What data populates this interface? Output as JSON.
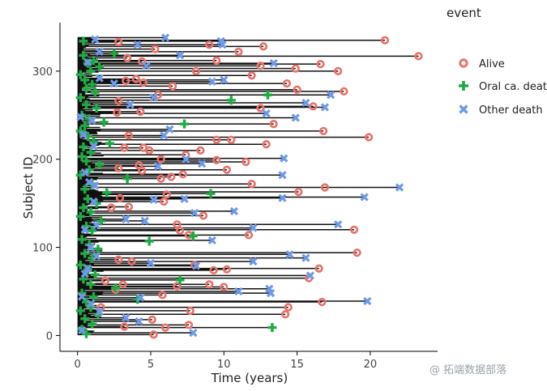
{
  "chart_data": {
    "type": "scatter",
    "title": "",
    "xlabel": "Time (years)",
    "ylabel": "Subject ID",
    "xlim": [
      -1.2,
      24.6
    ],
    "ylim": [
      -18,
      355
    ],
    "xticks": [
      0,
      5,
      10,
      15,
      20
    ],
    "yticks": [
      0,
      100,
      200,
      300
    ],
    "n_subjects": 338,
    "legend_title": "event",
    "legend_position": "right",
    "series": [
      {
        "name": "Alive",
        "color": "#e8736c",
        "marker": "open-circle",
        "points": [
          [
            21.0,
            335
          ],
          [
            2.8,
            333
          ],
          [
            9.0,
            330
          ],
          [
            12.7,
            328
          ],
          [
            5.3,
            325
          ],
          [
            11.0,
            322
          ],
          [
            23.3,
            317
          ],
          [
            3.4,
            315
          ],
          [
            9.5,
            312
          ],
          [
            4.4,
            311
          ],
          [
            16.6,
            308
          ],
          [
            12.5,
            306
          ],
          [
            14.9,
            303
          ],
          [
            8.1,
            300
          ],
          [
            17.8,
            300
          ],
          [
            11.9,
            295
          ],
          [
            4.0,
            291
          ],
          [
            3.3,
            289
          ],
          [
            4.5,
            287
          ],
          [
            14.3,
            286
          ],
          [
            6.5,
            283
          ],
          [
            18.2,
            277
          ],
          [
            15.0,
            279
          ],
          [
            5.5,
            273
          ],
          [
            2.8,
            266
          ],
          [
            16.1,
            260
          ],
          [
            12.5,
            258
          ],
          [
            2.7,
            253
          ],
          [
            4.3,
            254
          ],
          [
            13.4,
            240
          ],
          [
            16.8,
            232
          ],
          [
            3.5,
            227
          ],
          [
            9.5,
            222
          ],
          [
            10.5,
            222
          ],
          [
            19.9,
            225
          ],
          [
            12.9,
            217
          ],
          [
            3.2,
            213
          ],
          [
            4.5,
            213
          ],
          [
            4.9,
            210
          ],
          [
            8.4,
            210
          ],
          [
            7.4,
            205
          ],
          [
            5.7,
            200
          ],
          [
            9.5,
            199
          ],
          [
            11.5,
            197
          ],
          [
            4.2,
            193
          ],
          [
            2.8,
            190
          ],
          [
            10.2,
            188
          ],
          [
            4.4,
            187
          ],
          [
            7.2,
            183
          ],
          [
            5.7,
            178
          ],
          [
            6.4,
            180
          ],
          [
            11.9,
            172
          ],
          [
            16.9,
            168
          ],
          [
            15.1,
            163
          ],
          [
            6.1,
            160
          ],
          [
            2.9,
            156
          ],
          [
            5.9,
            152
          ],
          [
            2.3,
            145
          ],
          [
            3.5,
            146
          ],
          [
            8.6,
            136
          ],
          [
            6.8,
            126
          ],
          [
            7.0,
            119
          ],
          [
            7.6,
            114
          ],
          [
            11.7,
            114
          ],
          [
            18.9,
            120
          ],
          [
            19.1,
            94
          ],
          [
            2.8,
            86
          ],
          [
            3.7,
            84
          ],
          [
            8.0,
            80
          ],
          [
            9.3,
            74
          ],
          [
            10.2,
            75
          ],
          [
            16.5,
            76
          ],
          [
            15.8,
            65
          ],
          [
            1.9,
            62
          ],
          [
            6.8,
            56
          ],
          [
            9.0,
            58
          ],
          [
            2.6,
            52
          ],
          [
            3.1,
            58
          ],
          [
            10.0,
            55
          ],
          [
            5.8,
            46
          ],
          [
            16.7,
            38
          ],
          [
            1.6,
            32
          ],
          [
            14.4,
            32
          ],
          [
            14.2,
            24
          ],
          [
            7.7,
            28
          ],
          [
            5.1,
            18
          ],
          [
            3.2,
            10
          ],
          [
            6.0,
            9
          ],
          [
            7.6,
            12
          ],
          [
            5.2,
            1
          ]
        ]
      },
      {
        "name": "Oral ca. death",
        "color": "#1faa45",
        "marker": "plus",
        "points": [
          [
            0.4,
            334
          ],
          [
            2.5,
            320
          ],
          [
            0.4,
            318
          ],
          [
            1.1,
            312
          ],
          [
            0.7,
            309
          ],
          [
            1.5,
            305
          ],
          [
            0.9,
            300
          ],
          [
            0.2,
            296
          ],
          [
            0.5,
            290
          ],
          [
            1.0,
            285
          ],
          [
            0.6,
            280
          ],
          [
            1.2,
            276
          ],
          [
            0.2,
            270
          ],
          [
            10.5,
            267
          ],
          [
            13.0,
            273
          ],
          [
            0.6,
            262
          ],
          [
            1.3,
            258
          ],
          [
            0.3,
            250
          ],
          [
            0.8,
            246
          ],
          [
            1.8,
            242
          ],
          [
            0.5,
            238
          ],
          [
            7.3,
            240
          ],
          [
            0.2,
            232
          ],
          [
            0.7,
            226
          ],
          [
            1.1,
            220
          ],
          [
            2.2,
            218
          ],
          [
            0.4,
            214
          ],
          [
            0.9,
            208
          ],
          [
            0.3,
            203
          ],
          [
            0.6,
            198
          ],
          [
            1.5,
            194
          ],
          [
            0.8,
            188
          ],
          [
            0.2,
            182
          ],
          [
            3.4,
            178
          ],
          [
            1.0,
            172
          ],
          [
            0.5,
            166
          ],
          [
            2.0,
            162
          ],
          [
            9.1,
            161
          ],
          [
            0.7,
            155
          ],
          [
            1.3,
            150
          ],
          [
            0.4,
            145
          ],
          [
            0.9,
            140
          ],
          [
            0.2,
            135
          ],
          [
            1.6,
            130
          ],
          [
            0.6,
            124
          ],
          [
            1.0,
            119
          ],
          [
            7.9,
            113
          ],
          [
            0.3,
            109
          ],
          [
            4.9,
            107
          ],
          [
            0.8,
            103
          ],
          [
            1.4,
            98
          ],
          [
            0.5,
            93
          ],
          [
            1.0,
            88
          ],
          [
            0.2,
            80
          ],
          [
            0.7,
            75
          ],
          [
            1.2,
            69
          ],
          [
            0.4,
            64
          ],
          [
            7.0,
            63
          ],
          [
            0.9,
            58
          ],
          [
            2.6,
            54
          ],
          [
            0.3,
            48
          ],
          [
            1.1,
            44
          ],
          [
            4.1,
            41
          ],
          [
            0.6,
            38
          ],
          [
            0.9,
            32
          ],
          [
            0.2,
            28
          ],
          [
            1.4,
            24
          ],
          [
            0.5,
            19
          ],
          [
            13.3,
            9
          ],
          [
            1.0,
            13
          ],
          [
            0.3,
            7
          ],
          [
            0.6,
            2
          ]
        ]
      },
      {
        "name": "Other death",
        "color": "#6f99e8",
        "marker": "cross",
        "points": [
          [
            1.2,
            336
          ],
          [
            6.0,
            338
          ],
          [
            9.8,
            334
          ],
          [
            4.1,
            330
          ],
          [
            7.0,
            318
          ],
          [
            9.9,
            330
          ],
          [
            1.5,
            322
          ],
          [
            13.4,
            309
          ],
          [
            0.7,
            310
          ],
          [
            4.7,
            306
          ],
          [
            9.2,
            288
          ],
          [
            10.0,
            290
          ],
          [
            2.5,
            286
          ],
          [
            1.5,
            292
          ],
          [
            17.3,
            273
          ],
          [
            5.2,
            270
          ],
          [
            15.6,
            264
          ],
          [
            16.9,
            259
          ],
          [
            3.6,
            262
          ],
          [
            12.9,
            252
          ],
          [
            0.2,
            248
          ],
          [
            1.0,
            244
          ],
          [
            6.3,
            234
          ],
          [
            14.9,
            247
          ],
          [
            0.4,
            228
          ],
          [
            5.9,
            227
          ],
          [
            1.1,
            215
          ],
          [
            7.4,
            200
          ],
          [
            8.5,
            195
          ],
          [
            14.0,
            182
          ],
          [
            0.5,
            185
          ],
          [
            5.5,
            192
          ],
          [
            14.1,
            201
          ],
          [
            0.8,
            174
          ],
          [
            1.2,
            170
          ],
          [
            22.0,
            168
          ],
          [
            19.6,
            157
          ],
          [
            14.0,
            156
          ],
          [
            5.2,
            154
          ],
          [
            7.3,
            155
          ],
          [
            1.1,
            152
          ],
          [
            3.3,
            132
          ],
          [
            4.6,
            130
          ],
          [
            8.0,
            139
          ],
          [
            10.7,
            141
          ],
          [
            1.3,
            125
          ],
          [
            0.5,
            120
          ],
          [
            17.8,
            126
          ],
          [
            12.0,
            122
          ],
          [
            9.2,
            108
          ],
          [
            0.9,
            100
          ],
          [
            1.3,
            90
          ],
          [
            14.5,
            92
          ],
          [
            15.6,
            88
          ],
          [
            5.0,
            82
          ],
          [
            12.0,
            84
          ],
          [
            8.1,
            79
          ],
          [
            0.7,
            76
          ],
          [
            15.9,
            68
          ],
          [
            0.5,
            70
          ],
          [
            11.0,
            50
          ],
          [
            13.1,
            53
          ],
          [
            13.2,
            48
          ],
          [
            0.3,
            44
          ],
          [
            19.8,
            39
          ],
          [
            4.3,
            43
          ],
          [
            0.9,
            36
          ],
          [
            1.5,
            27
          ],
          [
            3.3,
            20
          ],
          [
            4.2,
            16
          ],
          [
            7.9,
            3
          ],
          [
            0.3,
            6
          ]
        ]
      }
    ]
  },
  "watermark": {
    "text": "@ 拓端数据部落"
  }
}
